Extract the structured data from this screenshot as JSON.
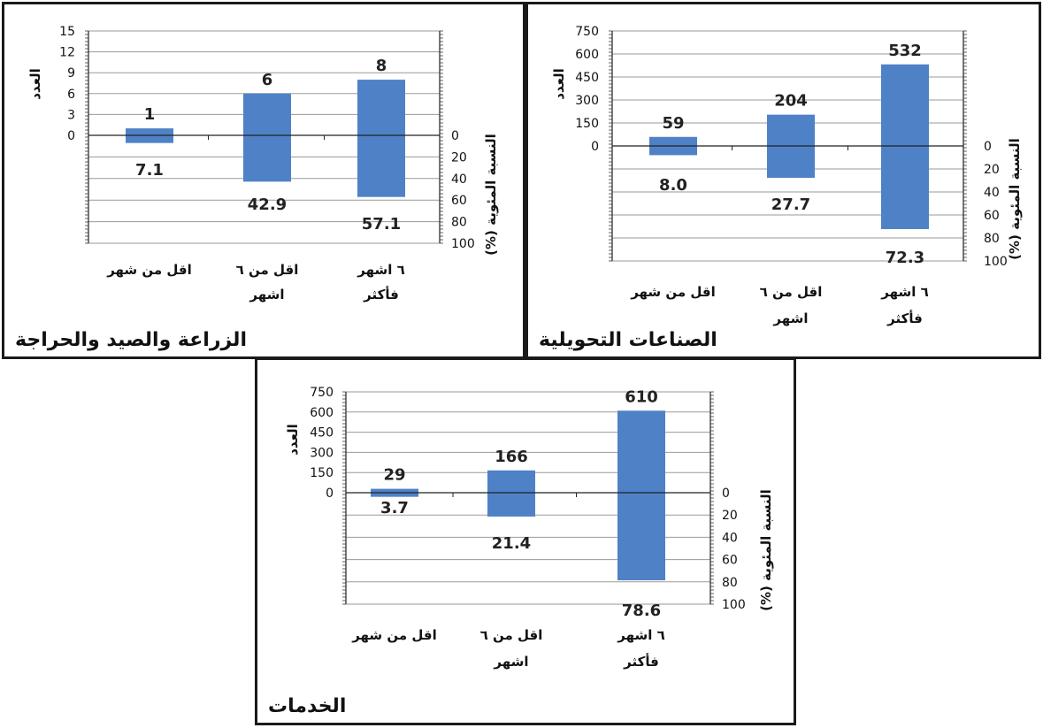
{
  "colors": {
    "bar": "#4f81c7",
    "grid": "#9a9a9a",
    "axis": "#222222",
    "border": "#1a1a1a"
  },
  "chart_data": [
    {
      "id": "agri",
      "type": "bar",
      "title": "الزراعة والصيد والحراجة",
      "ylabel": "العدد",
      "y2label": "النسبة المئوية (%)",
      "categories": [
        "اقل من شهر",
        "اقل من ٦ اشهر",
        "٦ اشهر فأكثر"
      ],
      "category_lines": [
        [
          "اقل من شهر"
        ],
        [
          "اقل من ٦",
          "اشهر"
        ],
        [
          "٦ اشهر",
          "فأكثر"
        ]
      ],
      "series": [
        {
          "values": [
            1,
            6,
            8
          ]
        },
        {
          "values": [
            7.1,
            42.9,
            57.1
          ]
        }
      ],
      "value_labels": [
        "1",
        "6",
        "8"
      ],
      "percent_labels": [
        "7.1",
        "42.9",
        "57.1"
      ],
      "ylim": [
        0,
        15
      ],
      "yticks": [
        "0",
        "3",
        "6",
        "9",
        "12",
        "15"
      ],
      "y2lim": [
        0,
        100
      ],
      "y2ticks": [
        "0",
        "20",
        "40",
        "60",
        "80",
        "100"
      ],
      "grid": true
    },
    {
      "id": "manu",
      "type": "bar",
      "title": "الصناعات التحويلية",
      "ylabel": "العدد",
      "y2label": "النسبة المئوية (%)",
      "categories": [
        "اقل من شهر",
        "اقل من ٦ اشهر",
        "٦ اشهر فأكثر"
      ],
      "category_lines": [
        [
          "اقل من شهر"
        ],
        [
          "اقل من ٦",
          "اشهر"
        ],
        [
          "٦ اشهر",
          "فأكثر"
        ]
      ],
      "series": [
        {
          "values": [
            59,
            204,
            532
          ]
        },
        {
          "values": [
            8.0,
            27.7,
            72.3
          ]
        }
      ],
      "value_labels": [
        "59",
        "204",
        "532"
      ],
      "percent_labels": [
        "8.0",
        "27.7",
        "72.3"
      ],
      "ylim": [
        0,
        750
      ],
      "yticks": [
        "0",
        "150",
        "300",
        "450",
        "600",
        "750"
      ],
      "y2lim": [
        0,
        100
      ],
      "y2ticks": [
        "0",
        "20",
        "40",
        "60",
        "80",
        "100"
      ],
      "grid": true
    },
    {
      "id": "serv",
      "type": "bar",
      "title": "الخدمات",
      "ylabel": "العدد",
      "y2label": "النسبة المئوية (%)",
      "categories": [
        "اقل من شهر",
        "اقل من ٦ اشهر",
        "٦ اشهر فأكثر"
      ],
      "category_lines": [
        [
          "اقل من شهر"
        ],
        [
          "اقل من ٦",
          "اشهر"
        ],
        [
          "٦ اشهر",
          "فأكثر"
        ]
      ],
      "series": [
        {
          "values": [
            29,
            166,
            610
          ]
        },
        {
          "values": [
            3.7,
            21.4,
            78.6
          ]
        }
      ],
      "value_labels": [
        "29",
        "166",
        "610"
      ],
      "percent_labels": [
        "3.7",
        "21.4",
        "78.6"
      ],
      "ylim": [
        0,
        750
      ],
      "yticks": [
        "0",
        "150",
        "300",
        "450",
        "600",
        "750"
      ],
      "y2lim": [
        0,
        100
      ],
      "y2ticks": [
        "0",
        "20",
        "40",
        "60",
        "80",
        "100"
      ],
      "grid": true
    }
  ]
}
